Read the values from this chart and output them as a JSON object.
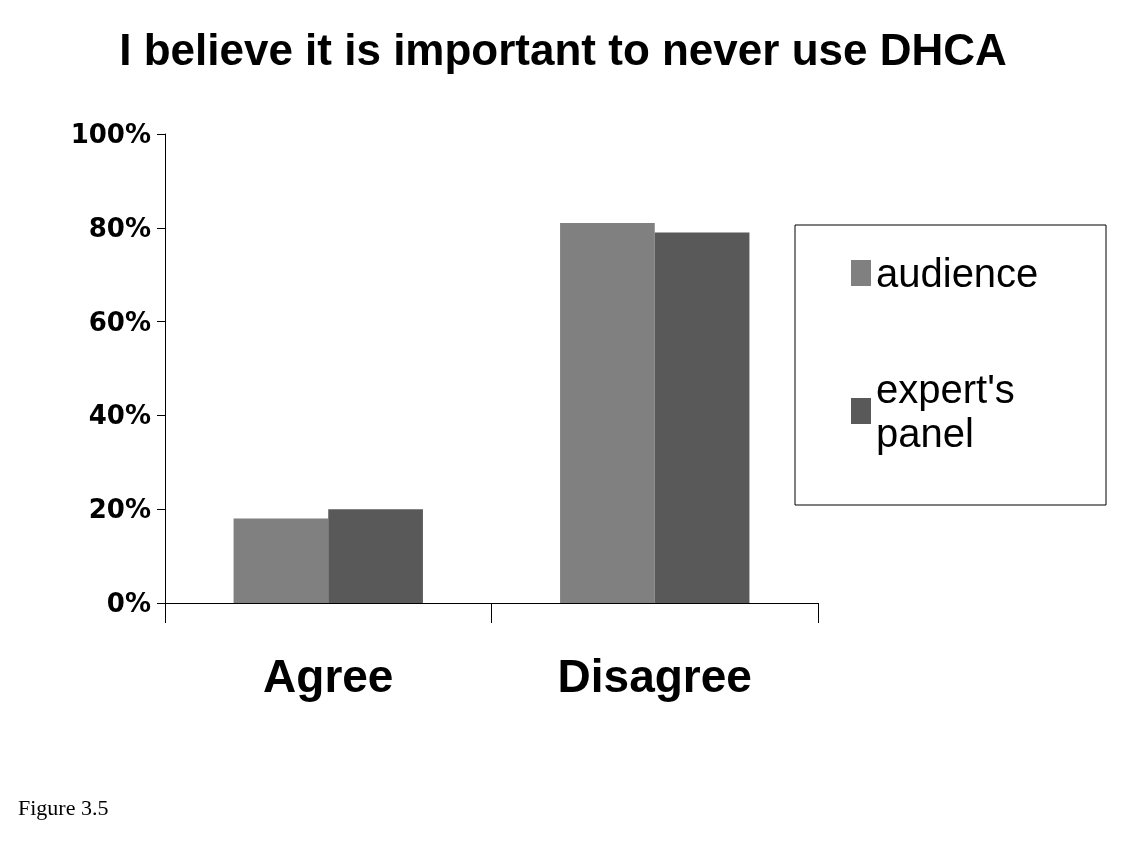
{
  "chart_data": {
    "type": "bar",
    "title": "I believe it is important to never use DHCA",
    "categories": [
      "Agree",
      "Disagree"
    ],
    "series": [
      {
        "name": "audience",
        "color": "#808080",
        "values": [
          18,
          81
        ]
      },
      {
        "name": "expert's panel",
        "color": "#595959",
        "values": [
          20,
          79
        ]
      }
    ],
    "ylim": [
      0,
      100
    ],
    "yticks": [
      {
        "value": 0,
        "label": "0%"
      },
      {
        "value": 20,
        "label": "20%"
      },
      {
        "value": 40,
        "label": "40%"
      },
      {
        "value": 60,
        "label": "60%"
      },
      {
        "value": 80,
        "label": "80%"
      },
      {
        "value": 100,
        "label": "100%"
      }
    ],
    "grid": false,
    "legend": "right",
    "annotations": [
      "Figure 3.5"
    ]
  }
}
